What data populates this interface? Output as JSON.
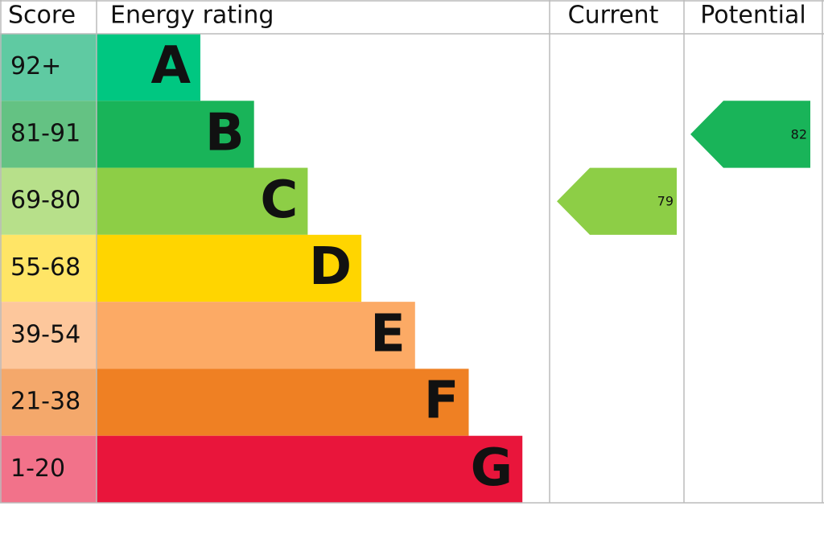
{
  "chart_data": {
    "type": "energy-rating",
    "headers": {
      "score": "Score",
      "rating": "Energy rating",
      "current": "Current",
      "potential": "Potential"
    },
    "bands": [
      {
        "range": "92+",
        "letter": "A",
        "color": "#00c781",
        "score_color": "#5fcaa2"
      },
      {
        "range": "81-91",
        "letter": "B",
        "color": "#19b459",
        "score_color": "#64c283"
      },
      {
        "range": "69-80",
        "letter": "C",
        "color": "#8dce46",
        "score_color": "#b7e08a"
      },
      {
        "range": "55-68",
        "letter": "D",
        "color": "#ffd500",
        "score_color": "#ffe566"
      },
      {
        "range": "39-54",
        "letter": "E",
        "color": "#fcaa65",
        "score_color": "#fdc79c"
      },
      {
        "range": "21-38",
        "letter": "F",
        "color": "#ef8023",
        "score_color": "#f4a86b"
      },
      {
        "range": "1-20",
        "letter": "G",
        "color": "#e9153b",
        "score_color": "#f2728a"
      }
    ],
    "current": {
      "value": 79
    },
    "potential": {
      "value": 82
    }
  }
}
